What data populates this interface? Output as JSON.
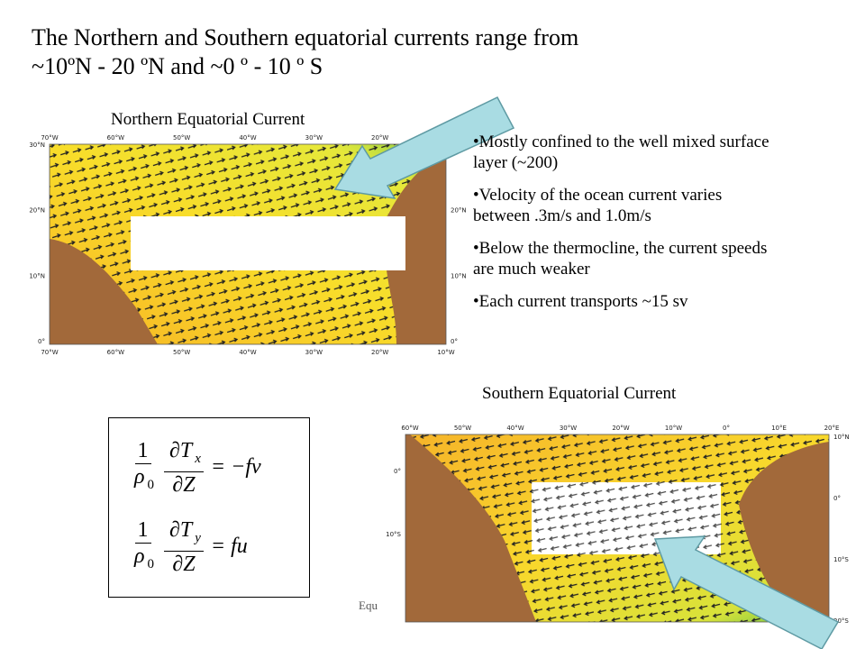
{
  "title": [
    "The Northern and Southern equatorial currents range from",
    "~10ºN - 20 ºN and ~0 º - 10 º S"
  ],
  "north_map": {
    "caption": "Northern Equatorial Current",
    "lon_labels": [
      "70°W",
      "60°W",
      "50°W",
      "40°W",
      "30°W",
      "20°W",
      "10°W"
    ],
    "lat_labels": [
      "30°N",
      "20°N",
      "10°N",
      "0°"
    ]
  },
  "bullets": [
    "•Mostly confined to the well mixed surface layer (~200)",
    "•Velocity of the ocean current varies between .3m/s and 1.0m/s",
    "•Below the thermocline, the current speeds are much weaker",
    "•Each current transports ~15 sv"
  ],
  "south_map": {
    "caption": "Southern Equatorial Current",
    "lon_labels": [
      "60°W",
      "50°W",
      "40°W",
      "30°W",
      "20°W",
      "10°W",
      "0°",
      "10°E",
      "20°E"
    ],
    "lat_labels_right": [
      "10°N",
      "0°",
      "10°S",
      "20°S"
    ],
    "lat_labels_left": [
      "0°",
      "10°S"
    ]
  },
  "equations": [
    {
      "one": "1",
      "rho": "ρ",
      "rho_sub": "0",
      "d_num": "∂T",
      "d_sub": "x",
      "d_den": "∂Z",
      "rhs": "= −fv"
    },
    {
      "one": "1",
      "rho": "ρ",
      "rho_sub": "0",
      "d_num": "∂T",
      "d_sub": "y",
      "d_den": "∂Z",
      "rhs": "= fu"
    }
  ],
  "footer_fragment": "Equ"
}
